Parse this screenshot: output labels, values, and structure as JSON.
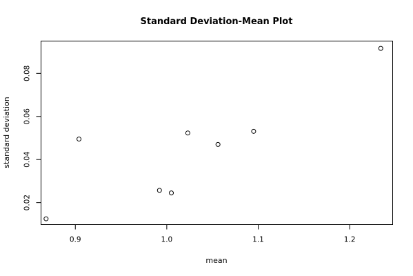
{
  "chart_data": {
    "type": "scatter",
    "title": "Standard Deviation-Mean Plot",
    "xlabel": "mean",
    "ylabel": "standard deviation",
    "xlim": [
      0.8625,
      1.247
    ],
    "ylim": [
      0.0098,
      0.095
    ],
    "x_ticks": [
      0.9,
      1.0,
      1.1,
      1.2
    ],
    "x_tick_labels": [
      "0.9",
      "1.0",
      "1.1",
      "1.2"
    ],
    "y_ticks": [
      0.02,
      0.04,
      0.06,
      0.08
    ],
    "y_tick_labels": [
      "0.02",
      "0.04",
      "0.06",
      "0.08"
    ],
    "grid": false,
    "marker": "open-circle",
    "points": [
      {
        "x": 0.868,
        "y": 0.0125
      },
      {
        "x": 0.904,
        "y": 0.0495
      },
      {
        "x": 0.992,
        "y": 0.0257
      },
      {
        "x": 1.005,
        "y": 0.0245
      },
      {
        "x": 1.023,
        "y": 0.0523
      },
      {
        "x": 1.056,
        "y": 0.047
      },
      {
        "x": 1.095,
        "y": 0.0531
      },
      {
        "x": 1.234,
        "y": 0.0916
      }
    ]
  }
}
